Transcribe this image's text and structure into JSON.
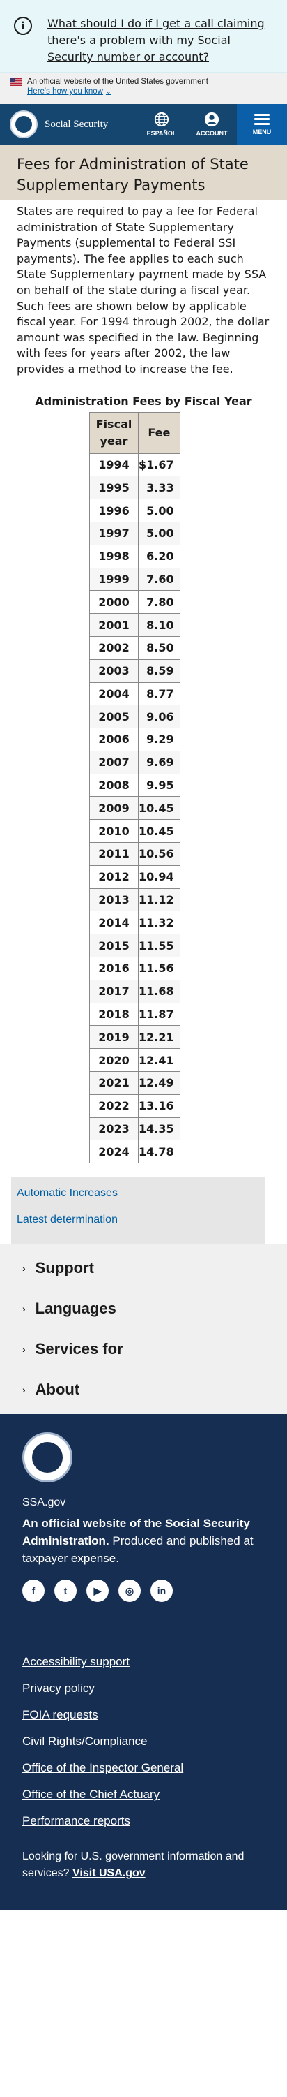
{
  "alert": {
    "text": "What should I do if I get a call claiming there's a problem with my Social Security number or account?"
  },
  "gov_banner": {
    "official": "An official website of the United States government",
    "how_know": "Here's how you know"
  },
  "header": {
    "brand": "Social Security",
    "espanol": "ESPAÑOL",
    "account": "ACCOUNT",
    "menu": "MENU"
  },
  "page": {
    "title": "Fees for Administration of State Supplementary Payments",
    "intro": "States are required to pay a fee for Federal administration of State Supplementary Payments (supplemental to Federal SSI payments). The fee applies to each such State Supplementary payment made by SSA on behalf of the state during a fiscal year. Such fees are shown below by applicable fiscal year. For 1994 through 2002, the dollar amount was specified in the law. Beginning with fees for years after 2002, the law provides a method to increase the fee."
  },
  "fee_table": {
    "caption": "Administration Fees by Fiscal Year",
    "col_year": "Fiscal year",
    "col_fee": "Fee",
    "rows": [
      {
        "year": "1994",
        "fee": "$1.67"
      },
      {
        "year": "1995",
        "fee": "3.33"
      },
      {
        "year": "1996",
        "fee": "5.00"
      },
      {
        "year": "1997",
        "fee": "5.00"
      },
      {
        "year": "1998",
        "fee": "6.20"
      },
      {
        "year": "1999",
        "fee": "7.60"
      },
      {
        "year": "2000",
        "fee": "7.80"
      },
      {
        "year": "2001",
        "fee": "8.10"
      },
      {
        "year": "2002",
        "fee": "8.50"
      },
      {
        "year": "2003",
        "fee": "8.59"
      },
      {
        "year": "2004",
        "fee": "8.77"
      },
      {
        "year": "2005",
        "fee": "9.06"
      },
      {
        "year": "2006",
        "fee": "9.29"
      },
      {
        "year": "2007",
        "fee": "9.69"
      },
      {
        "year": "2008",
        "fee": "9.95"
      },
      {
        "year": "2009",
        "fee": "10.45"
      },
      {
        "year": "2010",
        "fee": "10.45"
      },
      {
        "year": "2011",
        "fee": "10.56"
      },
      {
        "year": "2012",
        "fee": "10.94"
      },
      {
        "year": "2013",
        "fee": "11.12"
      },
      {
        "year": "2014",
        "fee": "11.32"
      },
      {
        "year": "2015",
        "fee": "11.55"
      },
      {
        "year": "2016",
        "fee": "11.56"
      },
      {
        "year": "2017",
        "fee": "11.68"
      },
      {
        "year": "2018",
        "fee": "11.87"
      },
      {
        "year": "2019",
        "fee": "12.21"
      },
      {
        "year": "2020",
        "fee": "12.41"
      },
      {
        "year": "2021",
        "fee": "12.49"
      },
      {
        "year": "2022",
        "fee": "13.16"
      },
      {
        "year": "2023",
        "fee": "14.35"
      },
      {
        "year": "2024",
        "fee": "14.78"
      }
    ]
  },
  "related_links": [
    "Automatic Increases",
    "Latest determination"
  ],
  "accordion": [
    "Support",
    "Languages",
    "Services for",
    "About"
  ],
  "footer": {
    "site": "SSA.gov",
    "official_bold": "An official website of the Social Security Administration.",
    "official_rest": " Produced and published at taxpayer expense.",
    "social": [
      {
        "icon": "facebook-icon",
        "glyph": "f"
      },
      {
        "icon": "twitter-icon",
        "glyph": "t"
      },
      {
        "icon": "youtube-icon",
        "glyph": "▶"
      },
      {
        "icon": "instagram-icon",
        "glyph": "◎"
      },
      {
        "icon": "linkedin-icon",
        "glyph": "in"
      }
    ],
    "links": [
      "Accessibility support",
      "Privacy policy",
      "FOIA requests",
      "Civil Rights/Compliance",
      "Office of the Inspector General",
      "Office of the Chief Actuary",
      "Performance reports"
    ],
    "looking": "Looking for U.S. government information and services?",
    "usa_link": "Visit USA.gov"
  },
  "colors": {
    "header_bg": "#15466f",
    "menu_bg": "#0a5fa8",
    "title_bg": "#e1d9cb",
    "footer_bg": "#162e51",
    "link": "#005ea2"
  }
}
